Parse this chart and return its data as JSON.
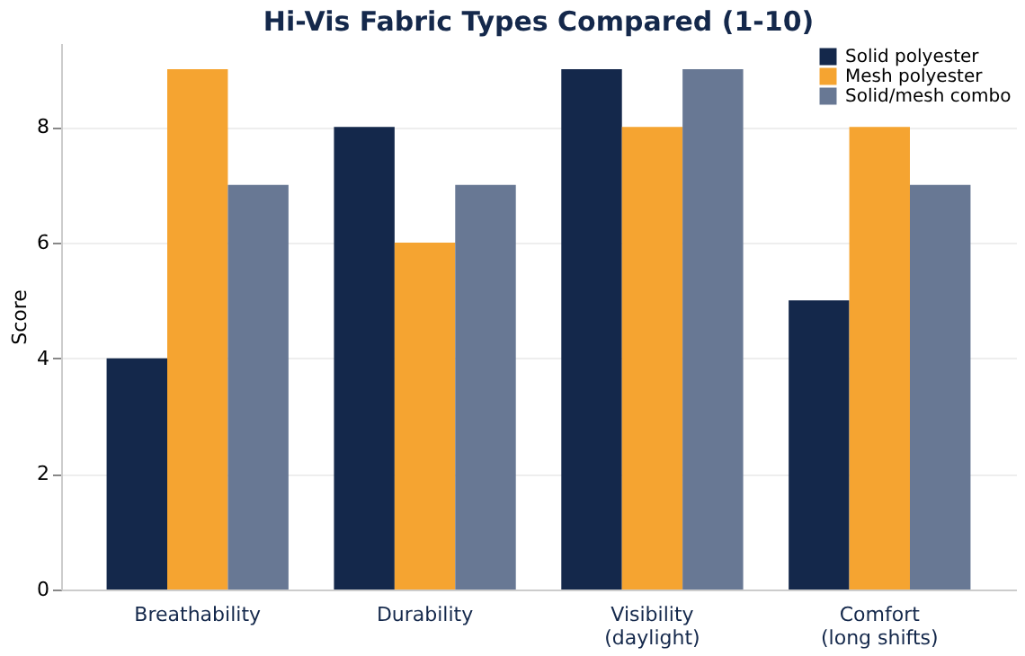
{
  "chart_data": {
    "type": "bar",
    "title": "Hi-Vis Fabric Types Compared (1-10)",
    "ylabel": "Score",
    "categories": [
      "Breathability",
      "Durability",
      "Visibility\n(daylight)",
      "Comfort\n(long shifts)"
    ],
    "series": [
      {
        "name": "Solid polyester",
        "color": "#14284b",
        "values": [
          4,
          8,
          9,
          5
        ]
      },
      {
        "name": "Mesh polyester",
        "color": "#f5a431",
        "values": [
          9,
          6,
          8,
          8
        ]
      },
      {
        "name": "Solid/mesh combo",
        "color": "#687894",
        "values": [
          7,
          7,
          9,
          7
        ]
      }
    ],
    "ylim": [
      0,
      9.45
    ],
    "yticks": [
      0,
      2,
      4,
      6,
      8
    ],
    "grid": "y",
    "legend": "top right"
  }
}
